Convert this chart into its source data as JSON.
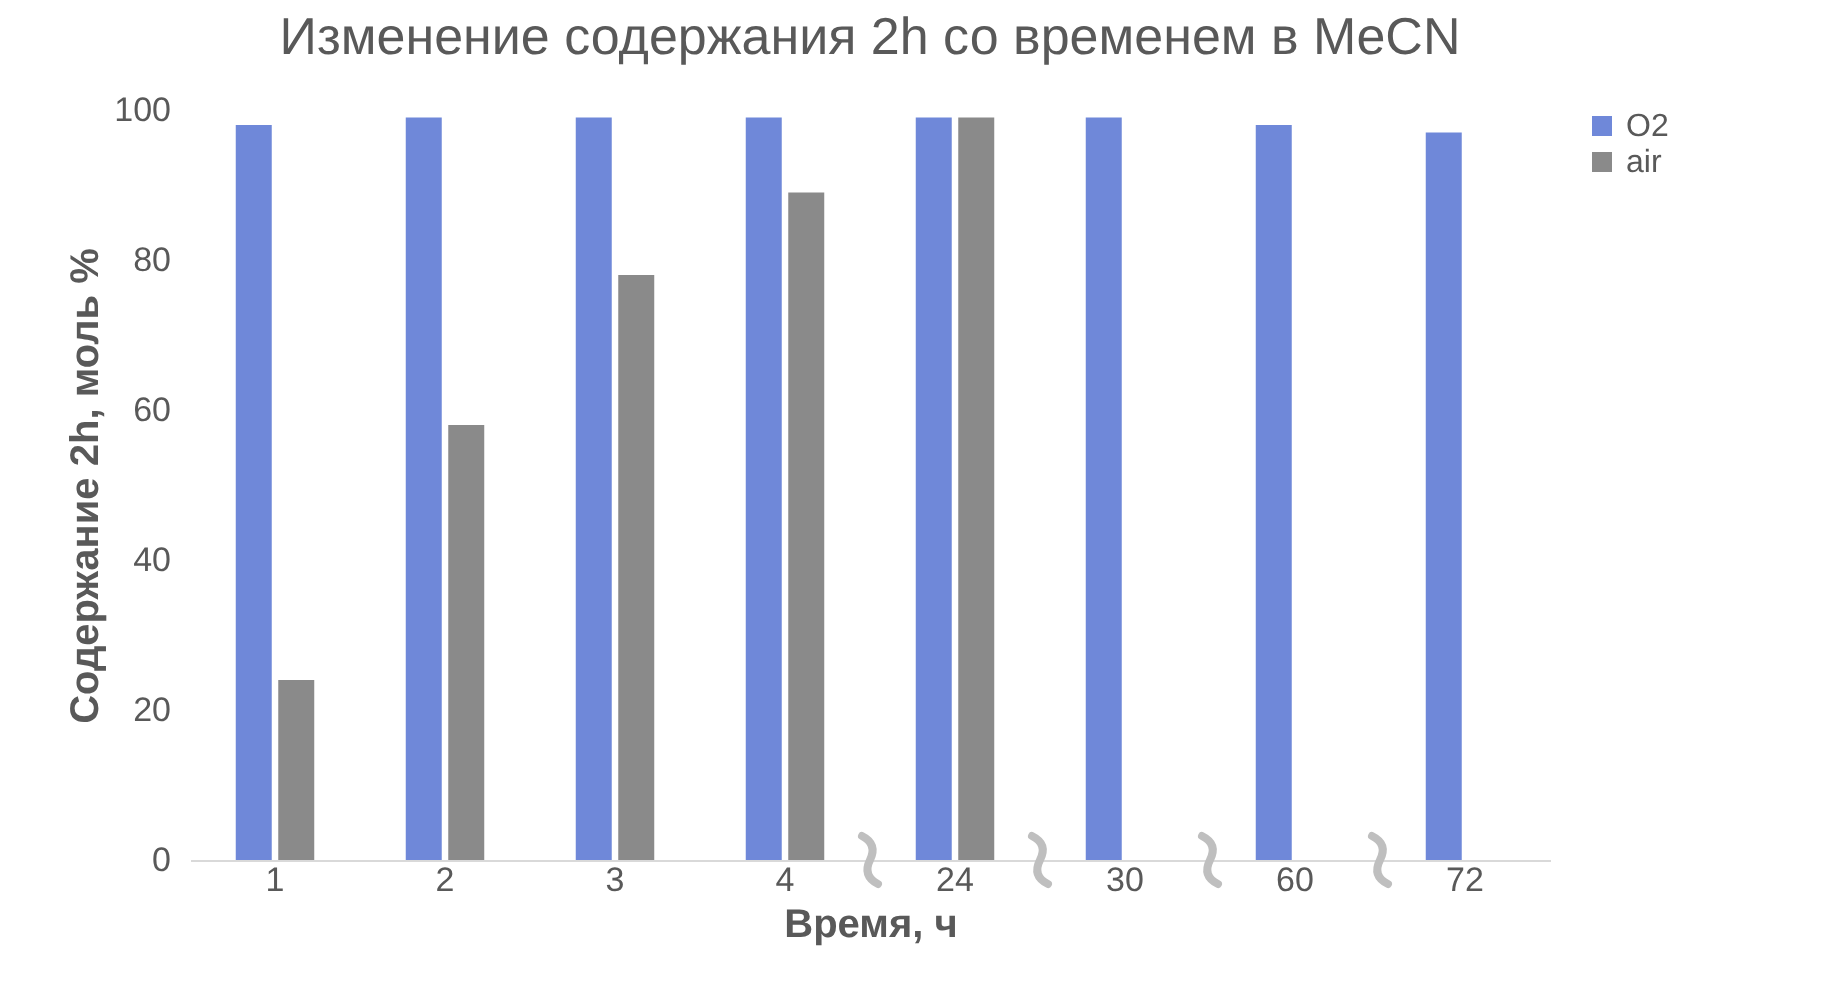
{
  "chart_data": {
    "type": "bar",
    "title": "Изменение содержания 2h со временем в MeCN",
    "xlabel": "Время, ч",
    "ylabel": "Содержание 2h, моль %",
    "categories": [
      "1",
      "2",
      "3",
      "4",
      "24",
      "30",
      "60",
      "72"
    ],
    "series": [
      {
        "name": "O2",
        "color": "#6f88d9",
        "values": [
          98,
          99,
          99,
          99,
          99,
          99,
          98,
          97
        ]
      },
      {
        "name": "air",
        "color": "#8a8a8a",
        "values": [
          24,
          58,
          78,
          89,
          99,
          null,
          null,
          null
        ]
      }
    ],
    "ylim": [
      0,
      100
    ],
    "yticks": [
      0,
      20,
      40,
      60,
      80,
      100
    ],
    "grid": false,
    "legend": "right"
  }
}
